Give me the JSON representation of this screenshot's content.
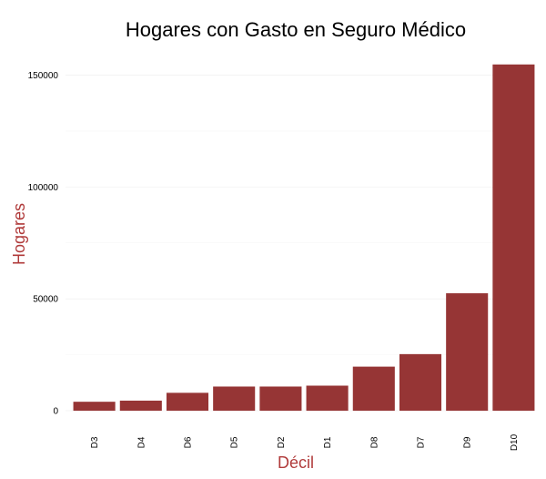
{
  "chart_data": {
    "type": "bar",
    "title": "Hogares con Gasto en Seguro Médico",
    "xlabel": "Décil",
    "ylabel": "Hogares",
    "categories": [
      "D3",
      "D4",
      "D6",
      "D5",
      "D2",
      "D1",
      "D8",
      "D7",
      "D9",
      "D10"
    ],
    "values": [
      4000,
      4500,
      8000,
      10800,
      10800,
      11200,
      19700,
      25300,
      52500,
      154800
    ],
    "ylim": [
      0,
      160000
    ],
    "yticks": [
      0,
      50000,
      100000,
      150000
    ],
    "ytick_labels": [
      "0",
      "50000",
      "100000",
      "150000"
    ],
    "grid": true,
    "colors": {
      "bar": "#963535",
      "axis_title": "#b03a3a",
      "title": "#000000"
    }
  }
}
